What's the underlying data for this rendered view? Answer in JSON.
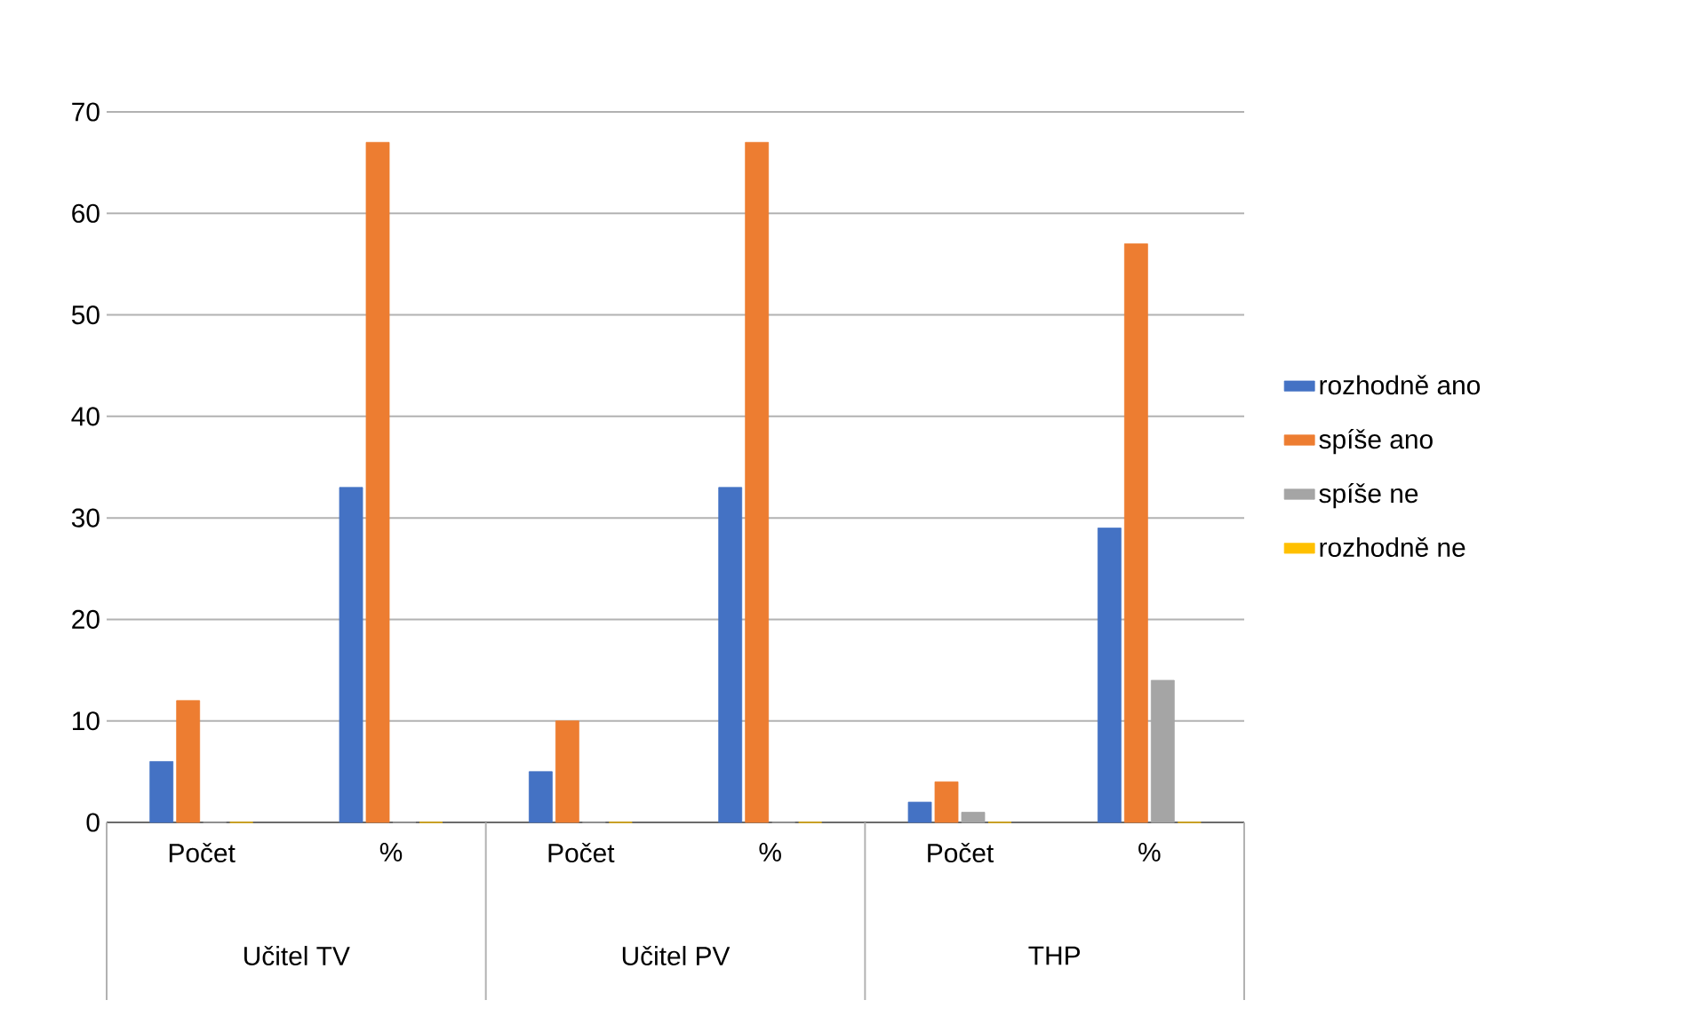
{
  "chart_data": {
    "type": "bar",
    "categories": [
      "Počet",
      "%",
      "Počet",
      "%",
      "Počet",
      "%"
    ],
    "series": [
      {
        "name": "rozhodně ano",
        "color": "#4472c4",
        "values": [
          6,
          33,
          5,
          33,
          2,
          29
        ]
      },
      {
        "name": "spíše ano",
        "color": "#ed7d31",
        "values": [
          12,
          67,
          10,
          67,
          4,
          57
        ]
      },
      {
        "name": "spíše ne",
        "color": "#a5a5a5",
        "values": [
          0,
          0,
          0,
          0,
          1,
          14
        ]
      },
      {
        "name": "rozhodně ne",
        "color": "#ffc000",
        "values": [
          0,
          0,
          0,
          0,
          0,
          0
        ]
      }
    ],
    "ylim": [
      0,
      70
    ],
    "yticks": [
      0,
      10,
      20,
      30,
      40,
      50,
      60,
      70
    ],
    "grid": "y",
    "legend": "right",
    "annotations": [
      "Učitel TV",
      "Učitel PV",
      "THP"
    ]
  }
}
